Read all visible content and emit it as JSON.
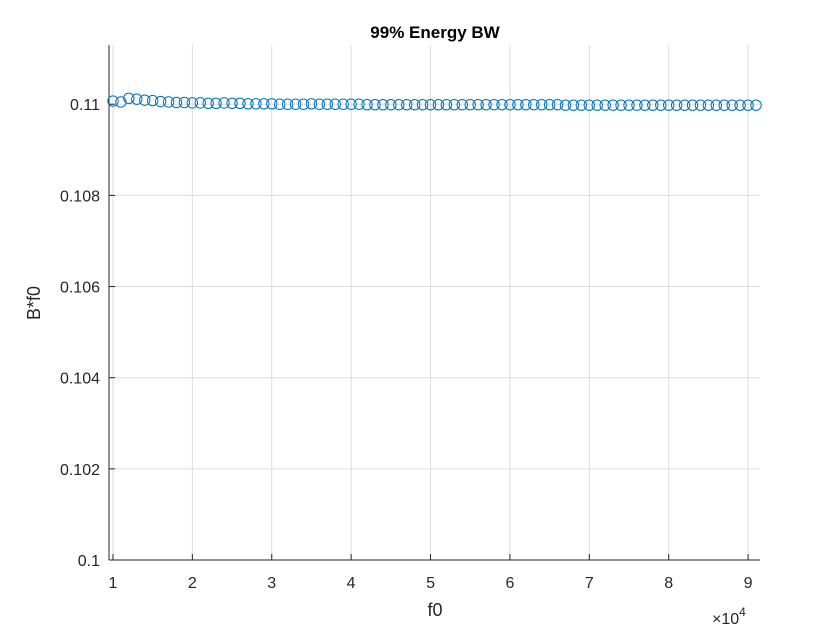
{
  "chart_data": {
    "type": "scatter",
    "title": "99% Energy BW",
    "xlabel": "f0",
    "ylabel": "B*f0",
    "x_exponent_label": "×10",
    "x_exponent_power": "4",
    "xlim": [
      9500,
      91500
    ],
    "ylim": [
      0.1,
      0.1113
    ],
    "xticks": [
      10000,
      20000,
      30000,
      40000,
      50000,
      60000,
      70000,
      80000,
      90000
    ],
    "xtick_labels": [
      "1",
      "2",
      "3",
      "4",
      "5",
      "6",
      "7",
      "8",
      "9"
    ],
    "yticks": [
      0.1,
      0.102,
      0.104,
      0.106,
      0.108,
      0.11
    ],
    "ytick_labels": [
      "0.1",
      "0.102",
      "0.104",
      "0.106",
      "0.108",
      "0.11"
    ],
    "grid": true,
    "marker": "circle-open",
    "color": "#0072BD",
    "series": [
      {
        "x_start": 10000,
        "x_step": 1000,
        "y": [
          0.11007,
          0.11005,
          0.11013,
          0.11011,
          0.11009,
          0.11008,
          0.11006,
          0.11005,
          0.11004,
          0.11004,
          0.11003,
          0.11003,
          0.11002,
          0.11002,
          0.11003,
          0.11002,
          0.11002,
          0.11001,
          0.11001,
          0.11001,
          0.11001,
          0.11,
          0.11,
          0.11,
          0.11,
          0.11001,
          0.11,
          0.11,
          0.11,
          0.11,
          0.11,
          0.11,
          0.10999,
          0.10999,
          0.10999,
          0.10999,
          0.10999,
          0.10999,
          0.10999,
          0.10999,
          0.10999,
          0.10999,
          0.10999,
          0.10999,
          0.10999,
          0.10999,
          0.10999,
          0.10999,
          0.10999,
          0.10999,
          0.10999,
          0.10999,
          0.10999,
          0.10999,
          0.10999,
          0.10999,
          0.10999,
          0.10998,
          0.10998,
          0.10998,
          0.10998,
          0.10998,
          0.10998,
          0.10998,
          0.10998,
          0.10998,
          0.10998,
          0.10998,
          0.10998,
          0.10998,
          0.10998,
          0.10998,
          0.10998,
          0.10998,
          0.10998,
          0.10998,
          0.10998,
          0.10998,
          0.10998,
          0.10998,
          0.10998,
          0.10998
        ]
      }
    ]
  }
}
